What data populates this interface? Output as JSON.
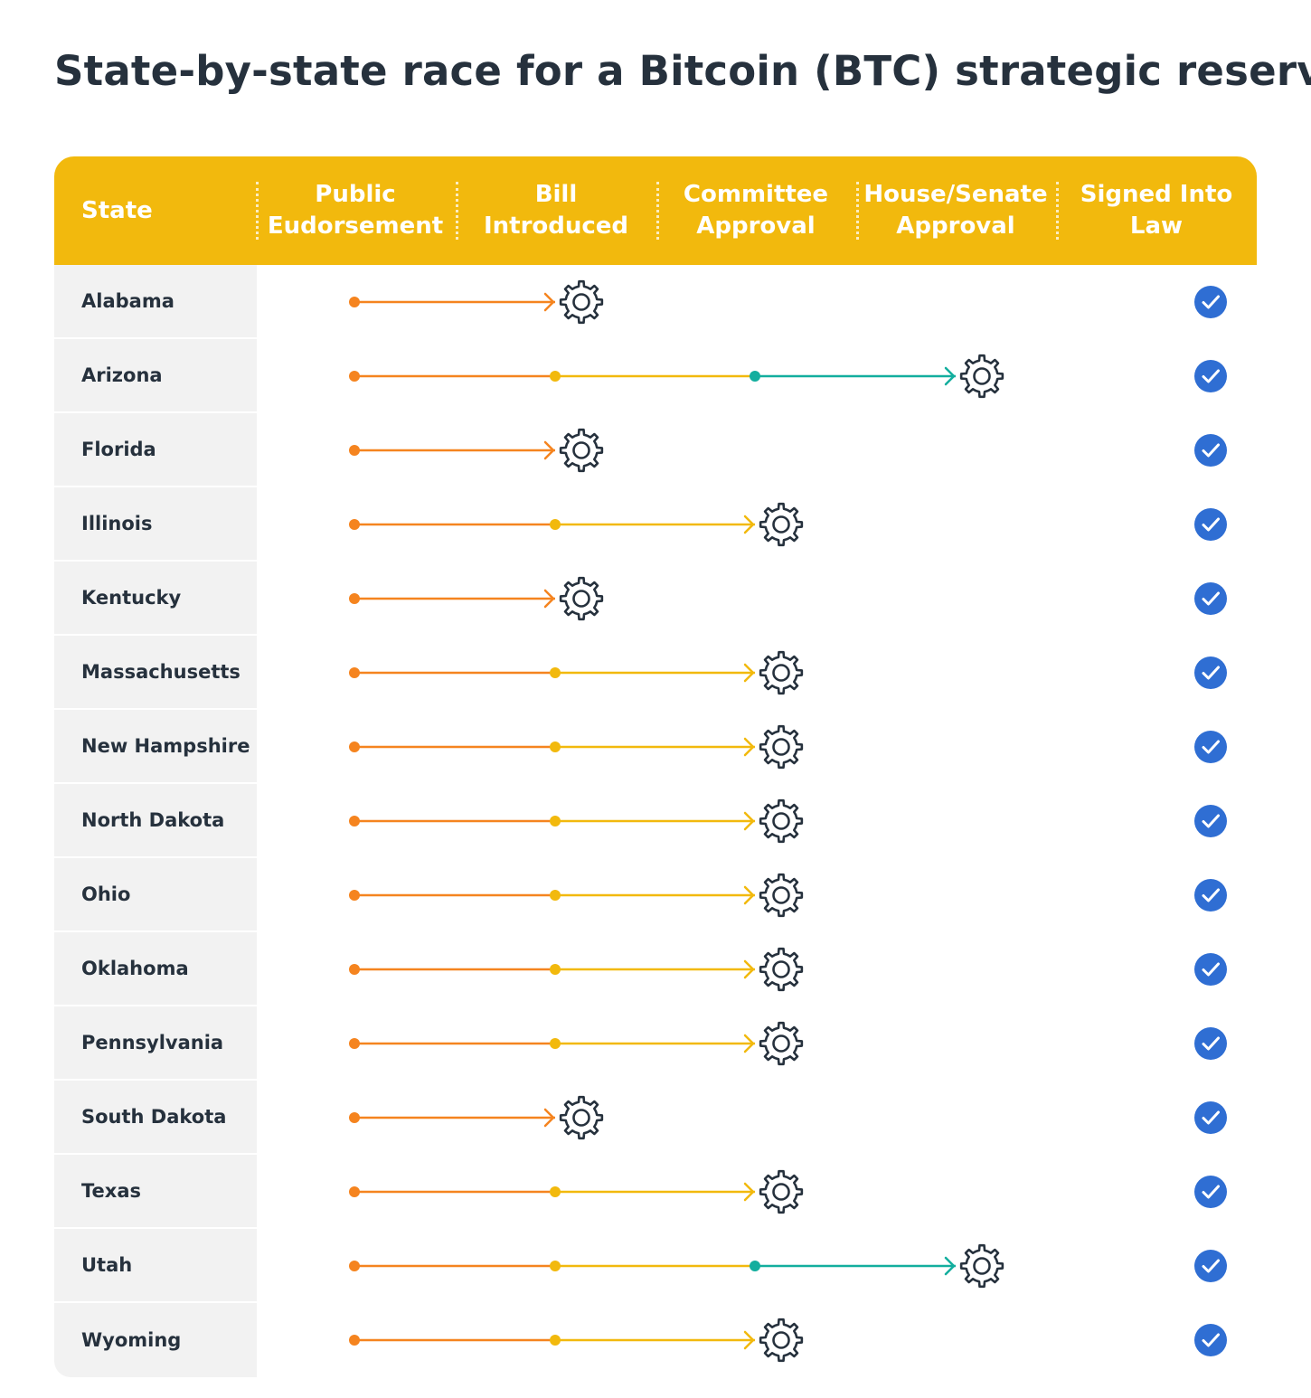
{
  "title": "State-by-state race for a Bitcoin (BTC) strategic reserve",
  "colors": {
    "header": "#f2b90d",
    "stage1_line": "#f5841f",
    "stage2_line": "#f2b90d",
    "stage3_line": "#13ae9e",
    "check": "#2f6ed3",
    "gear": "#26313d",
    "state_cell_bg": "#f2f2f2"
  },
  "chart_data": {
    "type": "table",
    "columns": [
      "State",
      "Public\nEudorsement",
      "Bill\nIntroduced",
      "Committee\nApproval",
      "House/Senate\nApproval",
      "Signed Into\nLaw"
    ],
    "stages": [
      "Public Eudorsement",
      "Bill Introduced",
      "Committee Approval",
      "House/Senate Approval",
      "Signed Into Law"
    ],
    "progress_icon": "gear-icon",
    "final_icon": "check-circle-icon",
    "rows": [
      {
        "state": "Alabama",
        "current_stage": 2
      },
      {
        "state": "Arizona",
        "current_stage": 4
      },
      {
        "state": "Florida",
        "current_stage": 2
      },
      {
        "state": "Illinois",
        "current_stage": 3
      },
      {
        "state": "Kentucky",
        "current_stage": 2
      },
      {
        "state": "Massachusetts",
        "current_stage": 3
      },
      {
        "state": "New Hampshire",
        "current_stage": 3
      },
      {
        "state": "North Dakota",
        "current_stage": 3
      },
      {
        "state": "Ohio",
        "current_stage": 3
      },
      {
        "state": "Oklahoma",
        "current_stage": 3
      },
      {
        "state": "Pennsylvania",
        "current_stage": 3
      },
      {
        "state": "South Dakota",
        "current_stage": 2
      },
      {
        "state": "Texas",
        "current_stage": 3
      },
      {
        "state": "Utah",
        "current_stage": 4
      },
      {
        "state": "Wyoming",
        "current_stage": 3
      }
    ]
  }
}
